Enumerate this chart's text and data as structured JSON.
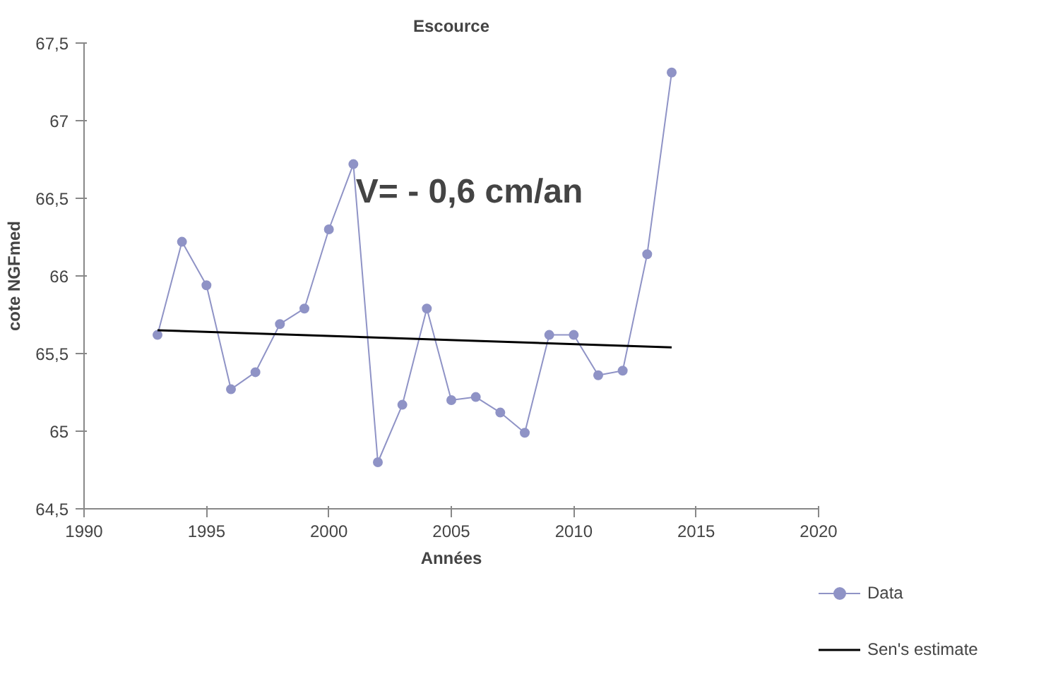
{
  "chart_data": {
    "type": "line",
    "title": "Escource",
    "xlabel": "Années",
    "ylabel": "cote NGFmed",
    "series": [
      {
        "name": "Data",
        "color": "#8f93c6",
        "marker": "circle",
        "x": [
          1993,
          1994,
          1995,
          1996,
          1997,
          1998,
          1999,
          2000,
          2001,
          2002,
          2003,
          2004,
          2005,
          2006,
          2007,
          2008,
          2009,
          2010,
          2011,
          2012,
          2013,
          2014
        ],
        "values": [
          65.62,
          66.22,
          65.94,
          65.27,
          65.38,
          65.69,
          65.79,
          66.3,
          66.72,
          64.8,
          65.17,
          65.79,
          65.2,
          65.22,
          65.12,
          64.99,
          65.62,
          65.62,
          65.36,
          65.39,
          66.14,
          67.31
        ]
      },
      {
        "name": "Sen's estimate",
        "color": "#000000",
        "marker": "none",
        "x": [
          1993,
          2014
        ],
        "values": [
          65.65,
          65.54
        ]
      }
    ],
    "xlim": [
      1990,
      2020
    ],
    "xticks": [
      1990,
      1995,
      2000,
      2005,
      2010,
      2015,
      2020
    ],
    "ylim": [
      64.5,
      67.5
    ],
    "yticks": [
      {
        "value": 64.5,
        "label": "64,5"
      },
      65,
      {
        "value": 65.5,
        "label": "65,5"
      },
      66,
      {
        "value": 66.5,
        "label": "66,5"
      },
      67,
      {
        "value": 67.5,
        "label": "67,5"
      }
    ],
    "grid": false,
    "legend": "right",
    "annotations": [
      "V= - 0,6 cm/an"
    ]
  }
}
